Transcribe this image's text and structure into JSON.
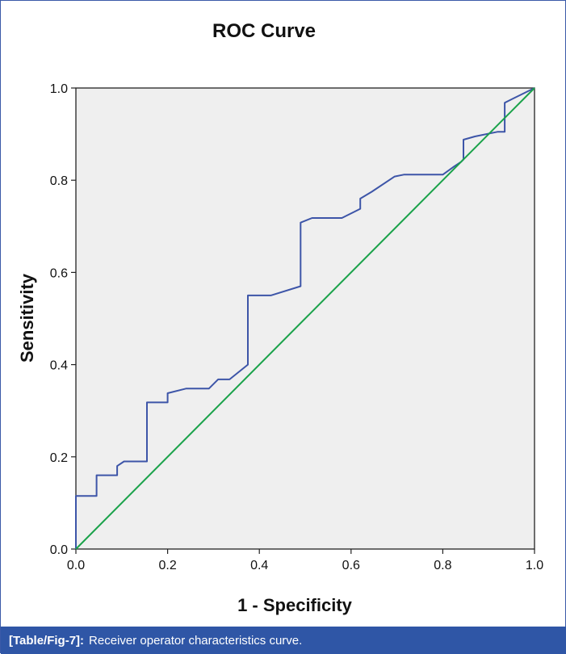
{
  "chart_data": {
    "type": "line",
    "title": "ROC Curve",
    "xlabel": "1 - Specificity",
    "ylabel": "Sensitivity",
    "xlim": [
      0,
      1
    ],
    "ylim": [
      0,
      1
    ],
    "xticks": [
      "0.0",
      "0.2",
      "0.4",
      "0.6",
      "0.8",
      "1.0"
    ],
    "yticks": [
      "0.0",
      "0.2",
      "0.4",
      "0.6",
      "0.8",
      "1.0"
    ],
    "grid": false,
    "series": [
      {
        "color": "#3d55a8",
        "points": [
          [
            0.0,
            0.0
          ],
          [
            0.0,
            0.115
          ],
          [
            0.045,
            0.115
          ],
          [
            0.045,
            0.16
          ],
          [
            0.09,
            0.16
          ],
          [
            0.09,
            0.18
          ],
          [
            0.105,
            0.19
          ],
          [
            0.155,
            0.19
          ],
          [
            0.155,
            0.318
          ],
          [
            0.2,
            0.318
          ],
          [
            0.2,
            0.338
          ],
          [
            0.24,
            0.348
          ],
          [
            0.29,
            0.348
          ],
          [
            0.31,
            0.368
          ],
          [
            0.335,
            0.368
          ],
          [
            0.375,
            0.4
          ],
          [
            0.375,
            0.55
          ],
          [
            0.425,
            0.55
          ],
          [
            0.49,
            0.57
          ],
          [
            0.49,
            0.708
          ],
          [
            0.515,
            0.718
          ],
          [
            0.58,
            0.718
          ],
          [
            0.62,
            0.738
          ],
          [
            0.62,
            0.76
          ],
          [
            0.645,
            0.775
          ],
          [
            0.695,
            0.808
          ],
          [
            0.715,
            0.812
          ],
          [
            0.8,
            0.812
          ],
          [
            0.825,
            0.83
          ],
          [
            0.84,
            0.84
          ],
          [
            0.845,
            0.845
          ],
          [
            0.845,
            0.888
          ],
          [
            0.87,
            0.895
          ],
          [
            0.92,
            0.905
          ],
          [
            0.935,
            0.905
          ],
          [
            0.935,
            0.968
          ],
          [
            0.955,
            0.978
          ],
          [
            1.0,
            1.0
          ]
        ]
      },
      {
        "color": "#1aa24a",
        "points": [
          [
            0.0,
            0.0
          ],
          [
            1.0,
            1.0
          ]
        ]
      }
    ]
  },
  "caption": {
    "label": "[Table/Fig-7]:",
    "text": "Receiver operator characteristics curve."
  }
}
